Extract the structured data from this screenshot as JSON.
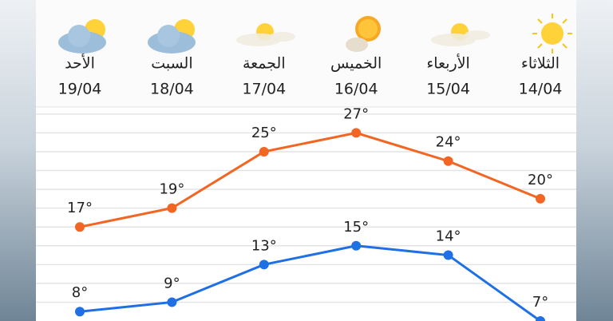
{
  "chart_data": {
    "type": "line",
    "categories": [
      "14/04",
      "15/04",
      "16/04",
      "17/04",
      "18/04",
      "19/04"
    ],
    "day_names": [
      "الثلاثاء",
      "الأربعاء",
      "الخميس",
      "الجمعة",
      "السبت",
      "الأحد"
    ],
    "series": [
      {
        "color": "#f26522",
        "values": [
          20,
          24,
          27,
          25,
          19,
          17
        ],
        "value_labels": [
          "20°",
          "24°",
          "27°",
          "25°",
          "19°",
          "17°"
        ]
      },
      {
        "color": "#1f6fe5",
        "values": [
          7,
          14,
          15,
          13,
          9,
          8
        ],
        "value_labels": [
          "7°",
          "14°",
          "15°",
          "13°",
          "9°",
          "8°"
        ]
      }
    ],
    "ylim": [
      7,
      29.75
    ],
    "yticks": [
      9,
      11,
      13,
      15,
      17,
      19,
      21,
      23,
      25,
      27,
      29
    ],
    "grid": true
  }
}
